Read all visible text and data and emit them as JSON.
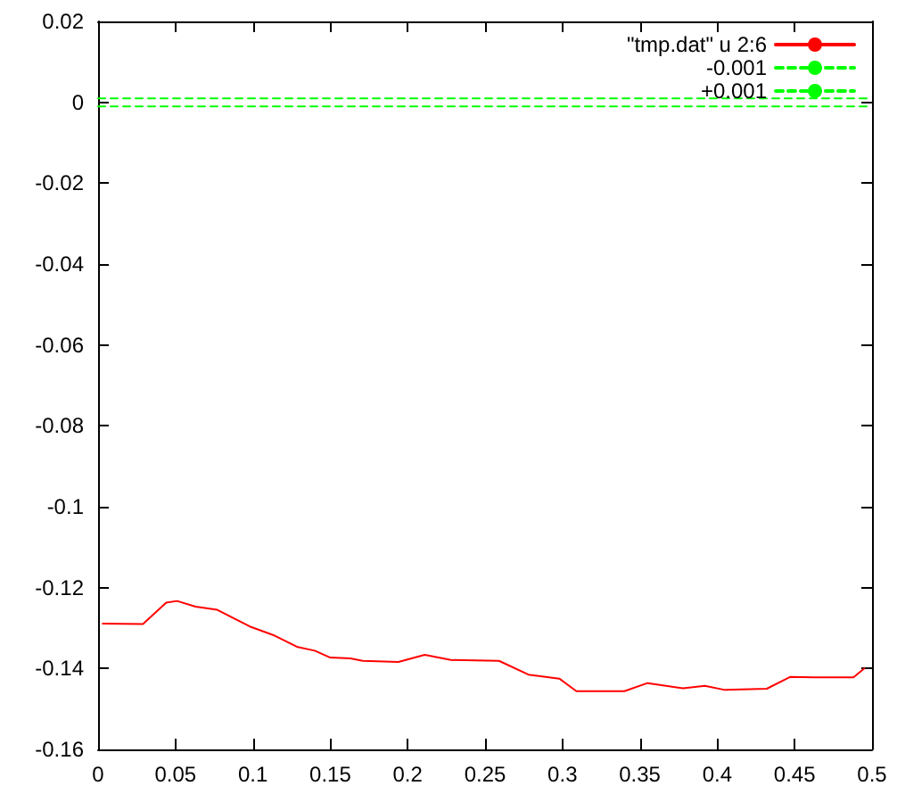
{
  "chart_data": {
    "type": "line",
    "xlim": [
      0,
      0.5
    ],
    "xticks": [
      0,
      0.05,
      0.1,
      0.15,
      0.2,
      0.25,
      0.3,
      0.35,
      0.4,
      0.45,
      0.5
    ],
    "ylim": [
      -0.16,
      0.02
    ],
    "yticks": [
      -0.16,
      -0.14,
      -0.12,
      -0.1,
      -0.08,
      -0.06,
      -0.04,
      -0.02,
      0,
      0.02
    ],
    "grid": false,
    "legend": "top right",
    "marker": "none",
    "series": [
      {
        "name": "\"tmp.dat\" u 2:6",
        "color": "#ff0000",
        "line_style": "solid",
        "x": [
          0.003,
          0.029,
          0.044,
          0.051,
          0.063,
          0.077,
          0.098,
          0.113,
          0.129,
          0.14,
          0.15,
          0.163,
          0.171,
          0.194,
          0.211,
          0.228,
          0.259,
          0.278,
          0.298,
          0.309,
          0.34,
          0.355,
          0.378,
          0.392,
          0.405,
          0.432,
          0.447,
          0.463,
          0.488,
          0.495
        ],
        "values": [
          -0.1289,
          -0.129,
          -0.1237,
          -0.1233,
          -0.1247,
          -0.1255,
          -0.1296,
          -0.1317,
          -0.1347,
          -0.1356,
          -0.1373,
          -0.1375,
          -0.1381,
          -0.1384,
          -0.1366,
          -0.1379,
          -0.1381,
          -0.1415,
          -0.1425,
          -0.1456,
          -0.1456,
          -0.1436,
          -0.1449,
          -0.1443,
          -0.1453,
          -0.145,
          -0.1421,
          -0.1422,
          -0.1422,
          -0.14
        ]
      },
      {
        "name": "-0.001",
        "color": "#00ff00",
        "line_style": "dashed",
        "x": [
          0,
          0.5
        ],
        "values": [
          -0.001,
          -0.001
        ]
      },
      {
        "name": "+0.001",
        "color": "#00ff00",
        "line_style": "dashed",
        "x": [
          0,
          0.5
        ],
        "values": [
          0.001,
          0.001
        ]
      }
    ]
  }
}
